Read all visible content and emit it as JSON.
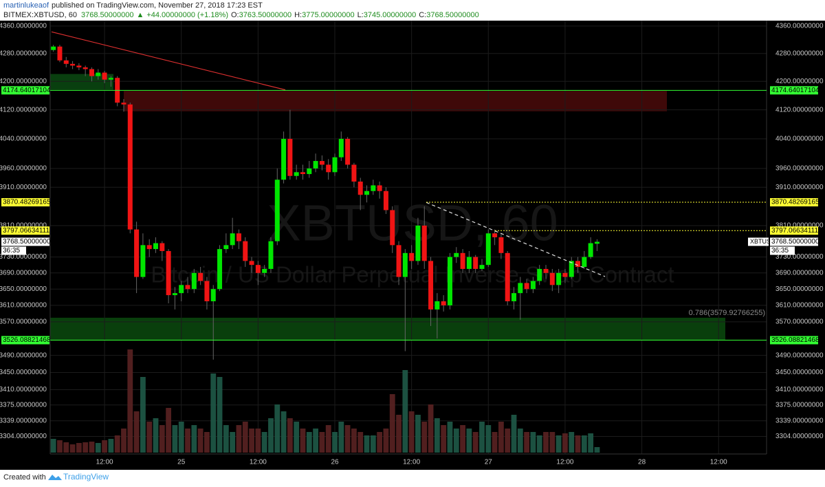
{
  "header": {
    "author": "martinlukeaof",
    "published": "published on TradingView.com, November 27, 2018 17:23 EST",
    "symbol": "BITMEX:XBTUSD, 60",
    "price": "3768.50000000",
    "arrow": "▲",
    "change": "+44.00000000 (+1.18%)",
    "ohlc": [
      {
        "label": "O:",
        "value": "3763.50000000"
      },
      {
        "label": "H:",
        "value": "3775.00000000"
      },
      {
        "label": "L:",
        "value": "3745.00000000"
      },
      {
        "label": "C:",
        "value": "3768.50000000"
      }
    ]
  },
  "footer": {
    "created": "Created with",
    "brand": "TradingView"
  },
  "chart_data": {
    "type": "candlestick",
    "watermark": "XBTUSD, 60",
    "watermark_subtitle": "Bitcoin / US Dollar Perpetual Inverse Swap Contract",
    "log_scale": true,
    "grid": true,
    "up_color": "#00e600",
    "down_color": "#f01414",
    "volume_up_color": "#1f5a48",
    "volume_down_color": "#5a2222",
    "ylim": [
      3265,
      4376
    ],
    "yticks": [
      {
        "value": 4360,
        "label": "4360.00000000"
      },
      {
        "value": 4280,
        "label": "4280.00000000"
      },
      {
        "value": 4200,
        "label": "4200.00000000"
      },
      {
        "value": 4120,
        "label": "4120.00000000"
      },
      {
        "value": 4040,
        "label": "4040.00000000"
      },
      {
        "value": 3960,
        "label": "3960.00000000"
      },
      {
        "value": 3910,
        "label": "3910.00000000"
      },
      {
        "value": 3810,
        "label": "3810.00000000"
      },
      {
        "value": 3730,
        "label": "3730.00000000"
      },
      {
        "value": 3690,
        "label": "3690.00000000"
      },
      {
        "value": 3650,
        "label": "3650.00000000"
      },
      {
        "value": 3610,
        "label": "3610.00000000"
      },
      {
        "value": 3570,
        "label": "3570.00000000"
      },
      {
        "value": 3490,
        "label": "3490.00000000"
      },
      {
        "value": 3450,
        "label": "3450.00000000"
      },
      {
        "value": 3410,
        "label": "3410.00000000"
      },
      {
        "value": 3375,
        "label": "3375.00000000"
      },
      {
        "value": 3339,
        "label": "3339.00000000"
      },
      {
        "value": 3304,
        "label": "3304.00000000"
      }
    ],
    "categories": [
      null,
      null,
      null,
      null,
      null,
      null,
      null,
      null,
      "12:00",
      null,
      null,
      null,
      null,
      null,
      null,
      null,
      null,
      null,
      null,
      null,
      "25",
      null,
      null,
      null,
      null,
      null,
      null,
      null,
      null,
      null,
      null,
      null,
      "12:00",
      null,
      null,
      null,
      null,
      null,
      null,
      null,
      null,
      null,
      null,
      null,
      "26",
      null,
      null,
      null,
      null,
      null,
      null,
      null,
      null,
      null,
      null,
      null,
      "12:00",
      null,
      null,
      null,
      null,
      null,
      null,
      null,
      null,
      null,
      null,
      null,
      "27",
      null,
      null,
      null,
      null,
      null,
      null,
      null,
      null,
      null,
      null,
      null,
      "12:00",
      null,
      null,
      null,
      null,
      null,
      null,
      null,
      null,
      null,
      null,
      null,
      "28",
      null,
      null,
      null,
      null,
      null,
      null,
      null,
      null,
      null,
      null,
      null,
      "12:00",
      null,
      null,
      null,
      null,
      null,
      null,
      null
    ],
    "open": [
      4290,
      4300,
      4260,
      4250,
      4245,
      4240,
      4235,
      4215,
      4225,
      4205,
      4210,
      4140,
      4135,
      3800,
      3680,
      3760,
      3750,
      3765,
      3745,
      3635,
      3640,
      3660,
      3650,
      3690,
      3670,
      3620,
      3650,
      3750,
      3760,
      3790,
      3770,
      3720,
      3710,
      3690,
      3700,
      3770,
      3930,
      4040,
      3940,
      3950,
      3945,
      3960,
      3980,
      3970,
      3950,
      3990,
      4040,
      3970,
      3925,
      3890,
      3900,
      3915,
      3900,
      3850,
      3760,
      3680,
      3740,
      3720,
      3810,
      3720,
      3600,
      3620,
      3610,
      3730,
      3740,
      3700,
      3730,
      3700,
      3710,
      3790,
      3780,
      3740,
      3620,
      3640,
      3665,
      3650,
      3670,
      3700,
      3690,
      3660,
      3690,
      3680,
      3720,
      3705,
      3730,
      3763.5,
      null,
      null,
      null,
      null,
      null,
      null,
      null,
      null,
      null,
      null,
      null,
      null,
      null,
      null,
      null,
      null,
      null,
      null,
      null,
      null,
      null,
      null,
      null,
      null,
      null,
      null
    ],
    "high": [
      4305,
      4305,
      4270,
      4258,
      4252,
      4245,
      4240,
      4235,
      4230,
      4215,
      4215,
      4150,
      4140,
      3820,
      3790,
      3775,
      3780,
      3770,
      3750,
      3655,
      3670,
      3680,
      3700,
      3705,
      3680,
      3660,
      3760,
      3790,
      3830,
      3800,
      3780,
      3730,
      3720,
      3710,
      3780,
      3960,
      4060,
      4120,
      3970,
      3970,
      3980,
      4000,
      3995,
      3985,
      4000,
      4060,
      4045,
      3975,
      3935,
      3915,
      3930,
      3925,
      3910,
      3860,
      3770,
      3750,
      3760,
      3830,
      3860,
      3730,
      3640,
      3635,
      3740,
      3755,
      3750,
      3745,
      3735,
      3725,
      3800,
      3800,
      3790,
      3745,
      3655,
      3680,
      3675,
      3680,
      3710,
      3710,
      3700,
      3700,
      3700,
      3730,
      3730,
      3745,
      3780,
      3775,
      null,
      null,
      null,
      null,
      null,
      null,
      null,
      null,
      null,
      null,
      null,
      null,
      null,
      null,
      null,
      null,
      null,
      null,
      null,
      null,
      null,
      null,
      null,
      null,
      null,
      null
    ],
    "low": [
      4285,
      4255,
      4240,
      4235,
      4232,
      4215,
      4200,
      4205,
      4195,
      4185,
      4130,
      4115,
      3790,
      3640,
      3675,
      3730,
      3740,
      3720,
      3615,
      3600,
      3620,
      3640,
      3640,
      3660,
      3600,
      3480,
      3645,
      3740,
      3750,
      3750,
      3705,
      3690,
      3660,
      3680,
      3690,
      3760,
      3920,
      3930,
      3930,
      3930,
      3935,
      3950,
      3955,
      3930,
      3940,
      3980,
      3960,
      3910,
      3850,
      3870,
      3890,
      3880,
      3840,
      3740,
      3660,
      3500,
      3700,
      3710,
      3700,
      3560,
      3530,
      3595,
      3600,
      3715,
      3690,
      3690,
      3690,
      3695,
      3705,
      3760,
      3725,
      3610,
      3600,
      3575,
      3640,
      3640,
      3660,
      3675,
      3645,
      3640,
      3665,
      3675,
      3690,
      3700,
      3725,
      3745,
      null,
      null,
      null,
      null,
      null,
      null,
      null,
      null,
      null,
      null,
      null,
      null,
      null,
      null,
      null,
      null,
      null,
      null,
      null,
      null,
      null,
      null,
      null,
      null,
      null,
      null
    ],
    "close": [
      4300,
      4260,
      4250,
      4245,
      4240,
      4235,
      4215,
      4225,
      4205,
      4210,
      4140,
      4135,
      3800,
      3680,
      3760,
      3750,
      3765,
      3745,
      3635,
      3640,
      3660,
      3650,
      3690,
      3670,
      3620,
      3650,
      3750,
      3760,
      3790,
      3770,
      3720,
      3710,
      3690,
      3700,
      3770,
      3930,
      4040,
      3940,
      3950,
      3945,
      3960,
      3980,
      3970,
      3950,
      3990,
      4040,
      3970,
      3925,
      3890,
      3900,
      3915,
      3900,
      3850,
      3760,
      3680,
      3740,
      3720,
      3810,
      3720,
      3600,
      3620,
      3610,
      3730,
      3740,
      3700,
      3730,
      3700,
      3710,
      3790,
      3780,
      3740,
      3620,
      3640,
      3665,
      3650,
      3670,
      3700,
      3690,
      3660,
      3690,
      3680,
      3720,
      3705,
      3730,
      3765,
      3768.5,
      null,
      null,
      null,
      null,
      null,
      null,
      null,
      null,
      null,
      null,
      null,
      null,
      null,
      null,
      null,
      null,
      null,
      null,
      null,
      null,
      null,
      null,
      null,
      null,
      null,
      null
    ],
    "volume": [
      20,
      18,
      15,
      12,
      14,
      15,
      16,
      14,
      18,
      20,
      25,
      35,
      150,
      60,
      110,
      45,
      50,
      40,
      65,
      40,
      45,
      35,
      40,
      35,
      30,
      115,
      110,
      40,
      30,
      40,
      45,
      35,
      35,
      30,
      50,
      70,
      60,
      50,
      45,
      35,
      30,
      35,
      30,
      40,
      30,
      45,
      40,
      35,
      30,
      25,
      25,
      30,
      35,
      85,
      55,
      120,
      60,
      55,
      45,
      70,
      50,
      40,
      45,
      35,
      40,
      35,
      30,
      45,
      40,
      30,
      45,
      35,
      55,
      35,
      30,
      30,
      25,
      30,
      30,
      25,
      28,
      30,
      25,
      25,
      28,
      8,
      null,
      null,
      null,
      null,
      null,
      null,
      null,
      null,
      null,
      null,
      null,
      null,
      null,
      null,
      null,
      null,
      null,
      null,
      null,
      null,
      null,
      null,
      null,
      null,
      null,
      null
    ],
    "zones": [
      {
        "low": 4116,
        "high": 4173,
        "color": "#4a0a0a"
      },
      {
        "low": 4176,
        "high": 4221,
        "color": "#0b4a12"
      },
      {
        "low": 3526.08821468,
        "high": 3579.92766255,
        "color": "#0a4a0e"
      }
    ],
    "fib_label": "0.786(3579.92766255)",
    "trendlines": [
      {
        "start": 4343,
        "end": 4176,
        "color": "#e03030",
        "dashed": false
      },
      {
        "start": 3870,
        "end": 3681,
        "color": "#e0e0e0",
        "dashed": true
      }
    ],
    "levels": [
      {
        "price": 4174.64017104,
        "color": "#33ff33",
        "dotted": false
      },
      {
        "price": 3870.48269165,
        "color": "#ffff33",
        "dotted": true
      },
      {
        "price": 3797.06634111,
        "color": "#ffff33",
        "dotted": true
      },
      {
        "price": 3526.08821468,
        "color": "#33ff33",
        "dotted": false
      }
    ],
    "last_price": {
      "value": 3768.5,
      "label": "3768.50000000"
    },
    "countdown": "36:35",
    "symbol_label": "XBTUSD"
  }
}
